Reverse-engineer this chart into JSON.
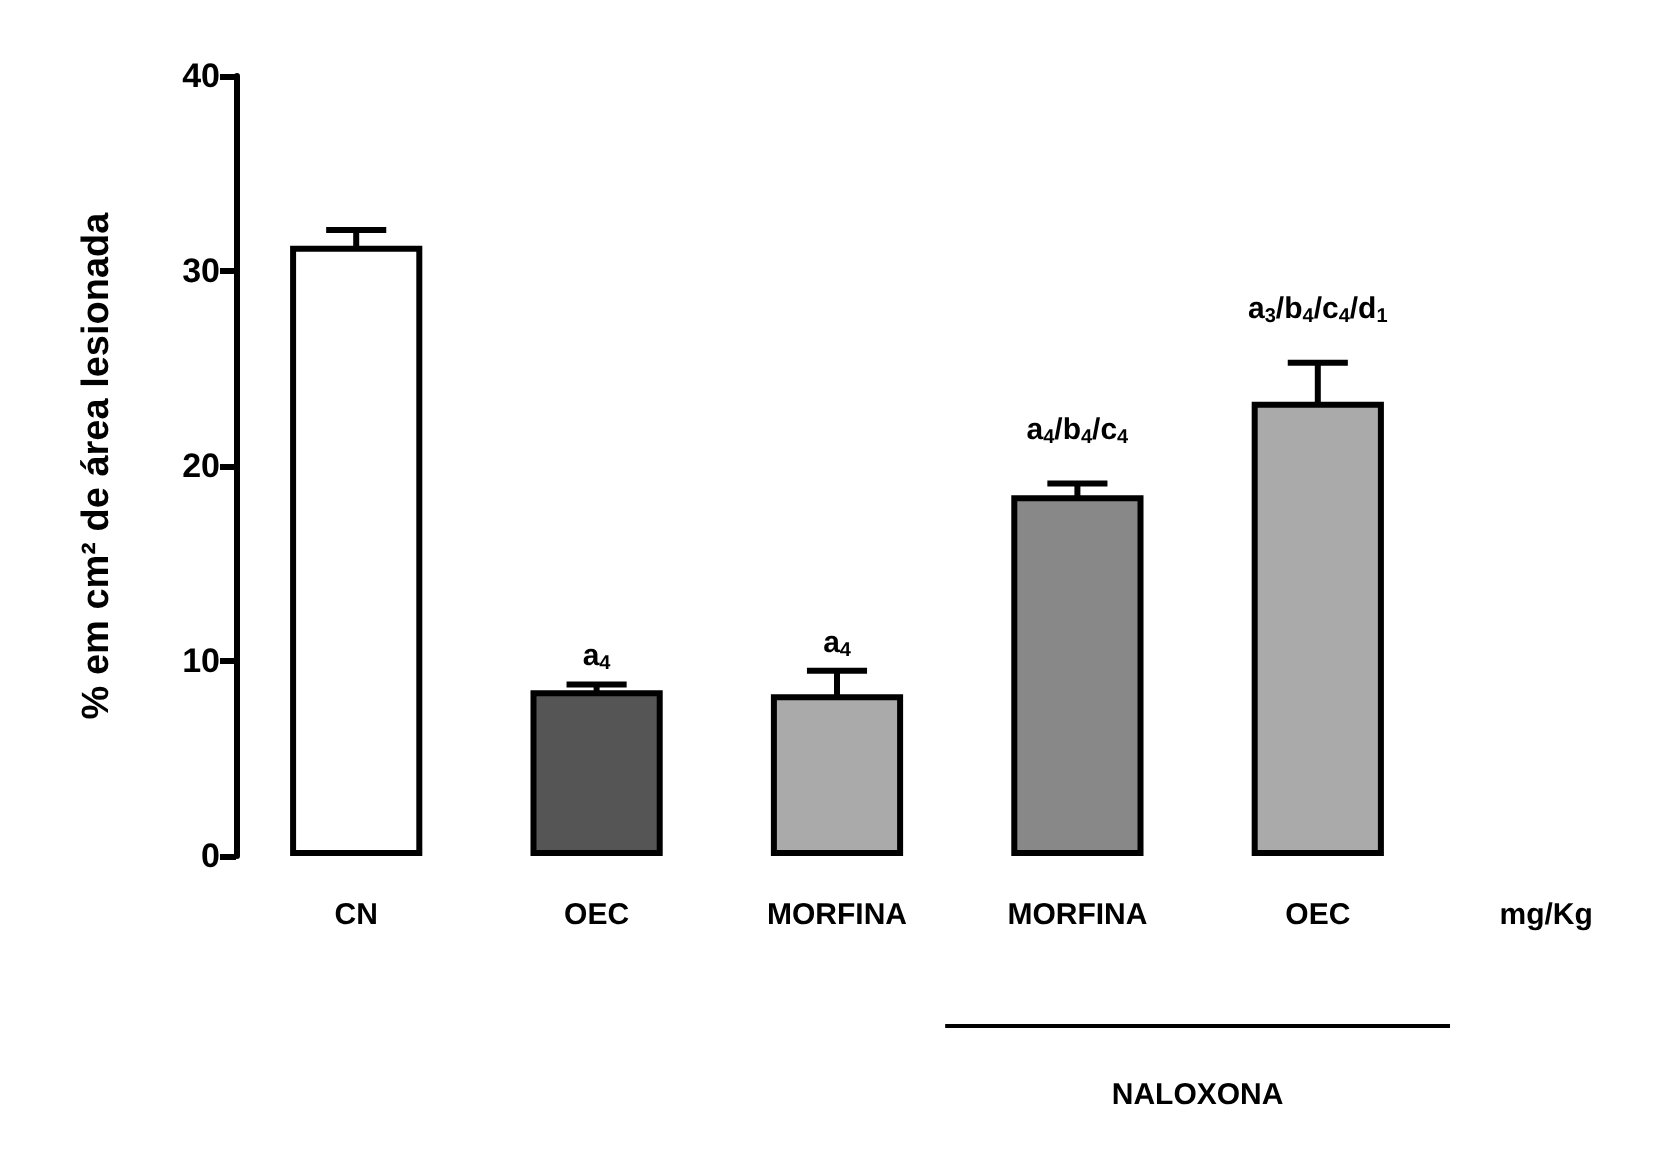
{
  "chart_data": {
    "type": "bar",
    "ylabel": "% em cm² de área lesionada",
    "categories": [
      "CN",
      "OEC",
      "MORFINA",
      "MORFINA",
      "OEC"
    ],
    "values": [
      31.3,
      8.5,
      8.3,
      18.5,
      23.3
    ],
    "errors": [
      0.8,
      0.3,
      1.2,
      0.6,
      2.0
    ],
    "colors": [
      "#ffffff",
      "#555555",
      "#aaaaaa",
      "#888888",
      "#aaaaaa"
    ],
    "ylim": [
      0,
      40
    ],
    "yticks": [
      0,
      10,
      20,
      30,
      40
    ],
    "grid": false,
    "annotations": [
      {
        "text": "a$_{4}$",
        "x": "OEC",
        "y": 8.8
      },
      {
        "text": "a$_{4}$",
        "x": "MORFINA",
        "y": 9.5
      },
      "a$_{4}$/b$_{4}$/c$_{4}$",
      "a$_{3}$/b$_{4}$/c$_{4}$/d$_{1}$",
      "mg/Kg",
      "NALOXONA"
    ]
  }
}
